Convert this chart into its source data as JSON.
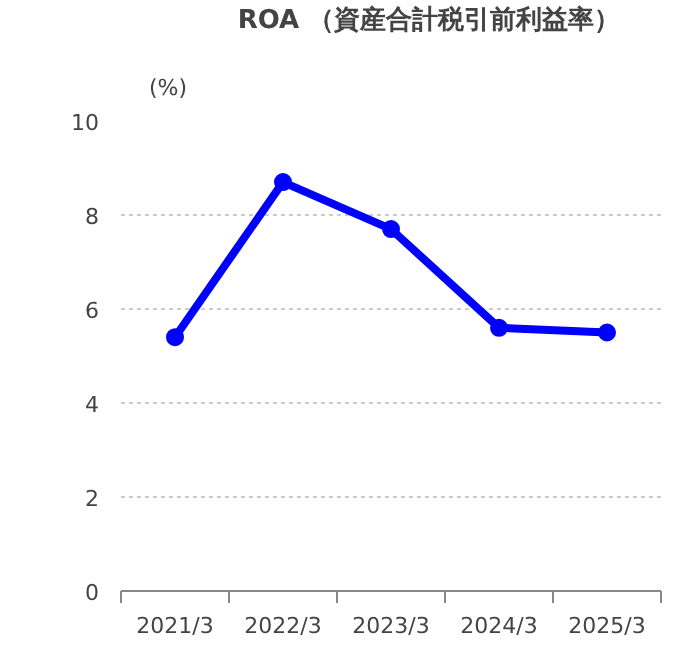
{
  "chart_data": {
    "type": "line",
    "ylabel": "(%)",
    "categories": [
      "2021/3",
      "2022/3",
      "2023/3",
      "2024/3",
      "2025/3"
    ],
    "series": [
      {
        "name": "ROA （資産合計税引前利益率）",
        "color": "#0000ff",
        "values": [
          5.4,
          8.7,
          7.7,
          5.6,
          5.5
        ]
      }
    ],
    "ylim": [
      0,
      10
    ],
    "yticks": [
      0,
      2,
      4,
      6,
      8,
      10
    ],
    "grid": "y",
    "legend": "top",
    "marker": "circle",
    "line_style": "solid"
  }
}
